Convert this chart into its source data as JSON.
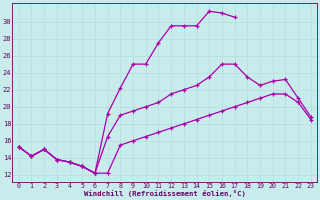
{
  "xlabel": "Windchill (Refroidissement éolien,°C)",
  "bg_color": "#c8ecec",
  "grid_color": "#aadddd",
  "line_color": "#aa00aa",
  "x_ticks": [
    0,
    1,
    2,
    3,
    4,
    5,
    6,
    7,
    8,
    9,
    10,
    11,
    12,
    13,
    14,
    15,
    16,
    17,
    18,
    19,
    20,
    21,
    22,
    23
  ],
  "y_ticks": [
    12,
    14,
    16,
    18,
    20,
    22,
    24,
    26,
    28,
    30
  ],
  "ylim": [
    11.2,
    32.2
  ],
  "xlim": [
    -0.5,
    23.5
  ],
  "lines": [
    {
      "x": [
        0,
        1,
        2,
        3,
        4,
        5,
        6,
        7,
        8,
        9,
        10,
        11,
        12,
        13,
        14,
        15,
        16,
        17
      ],
      "y": [
        15.3,
        14.2,
        15.0,
        13.8,
        13.5,
        13.0,
        12.2,
        19.2,
        22.2,
        25.0,
        25.0,
        27.5,
        29.5,
        29.5,
        29.5,
        31.2,
        31.0,
        30.5
      ]
    },
    {
      "x": [
        0,
        1,
        2,
        3,
        4,
        5,
        6,
        7,
        8,
        9,
        10,
        11,
        12,
        13,
        14,
        15,
        16,
        17,
        18,
        19,
        20,
        21,
        22,
        23
      ],
      "y": [
        15.3,
        14.2,
        15.0,
        13.8,
        13.5,
        13.0,
        12.2,
        16.5,
        19.0,
        19.5,
        20.0,
        20.5,
        21.5,
        22.0,
        22.5,
        23.5,
        25.0,
        25.0,
        23.5,
        22.5,
        23.0,
        23.2,
        21.0,
        18.8
      ]
    },
    {
      "x": [
        0,
        1,
        2,
        3,
        4,
        5,
        6,
        7,
        8,
        9,
        10,
        11,
        12,
        13,
        14,
        15,
        16,
        17,
        18,
        19,
        20,
        21,
        22,
        23
      ],
      "y": [
        15.3,
        14.2,
        15.0,
        13.8,
        13.5,
        13.0,
        12.2,
        12.2,
        15.5,
        16.0,
        16.5,
        17.0,
        17.5,
        18.0,
        18.5,
        19.0,
        19.5,
        20.0,
        20.5,
        21.0,
        21.5,
        21.5,
        20.5,
        18.5
      ]
    }
  ]
}
